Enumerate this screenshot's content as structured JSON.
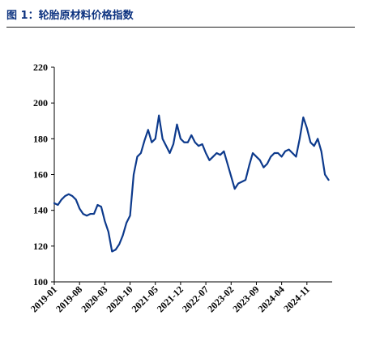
{
  "figure": {
    "title": "图 1：轮胎原材料价格指数"
  },
  "colors": {
    "series": "#0d3a8c",
    "title": "#0d3380",
    "axis": "#000000"
  },
  "chart_data": {
    "type": "line",
    "title": "",
    "xlabel": "",
    "ylabel": "",
    "ylim": [
      100,
      220
    ],
    "yticks": [
      100,
      120,
      140,
      160,
      180,
      200,
      220
    ],
    "xlim": [
      "2019-01",
      "2025-06"
    ],
    "xticks": [
      "2019-01",
      "2019-08",
      "2020-03",
      "2020-10",
      "2021-05",
      "2021-12",
      "2022-07",
      "2023-02",
      "2023-09",
      "2024-04",
      "2024-11"
    ],
    "grid": false,
    "legend": "none",
    "series": [
      {
        "name": "",
        "x": [
          "2019-01",
          "2019-02",
          "2019-03",
          "2019-04",
          "2019-05",
          "2019-06",
          "2019-07",
          "2019-08",
          "2019-09",
          "2019-10",
          "2019-11",
          "2019-12",
          "2020-01",
          "2020-02",
          "2020-03",
          "2020-04",
          "2020-05",
          "2020-06",
          "2020-07",
          "2020-08",
          "2020-09",
          "2020-10",
          "2020-11",
          "2020-12",
          "2021-01",
          "2021-02",
          "2021-03",
          "2021-04",
          "2021-05",
          "2021-06",
          "2021-07",
          "2021-08",
          "2021-09",
          "2021-10",
          "2021-11",
          "2021-12",
          "2022-01",
          "2022-02",
          "2022-03",
          "2022-04",
          "2022-05",
          "2022-06",
          "2022-07",
          "2022-08",
          "2022-09",
          "2022-10",
          "2022-11",
          "2022-12",
          "2023-01",
          "2023-02",
          "2023-03",
          "2023-04",
          "2023-05",
          "2023-06",
          "2023-07",
          "2023-08",
          "2023-09",
          "2023-10",
          "2023-11",
          "2023-12",
          "2024-01",
          "2024-02",
          "2024-03",
          "2024-04",
          "2024-05",
          "2024-06",
          "2024-07",
          "2024-08",
          "2024-09",
          "2024-10",
          "2024-11",
          "2024-12",
          "2025-01",
          "2025-02",
          "2025-03",
          "2025-04",
          "2025-05"
        ],
        "values": [
          144,
          143,
          146,
          148,
          149,
          148,
          146,
          141,
          138,
          137,
          138,
          138,
          143,
          142,
          134,
          128,
          117,
          118,
          121,
          126,
          133,
          137,
          160,
          170,
          172,
          179,
          185,
          178,
          180,
          193,
          180,
          176,
          172,
          177,
          188,
          180,
          178,
          178,
          182,
          178,
          176,
          177,
          172,
          168,
          170,
          172,
          171,
          173,
          166,
          159,
          152,
          155,
          156,
          157,
          165,
          172,
          170,
          168,
          164,
          166,
          170,
          172,
          172,
          170,
          173,
          174,
          172,
          170,
          180,
          192,
          186,
          178,
          176,
          180,
          173,
          160,
          157
        ]
      }
    ]
  }
}
